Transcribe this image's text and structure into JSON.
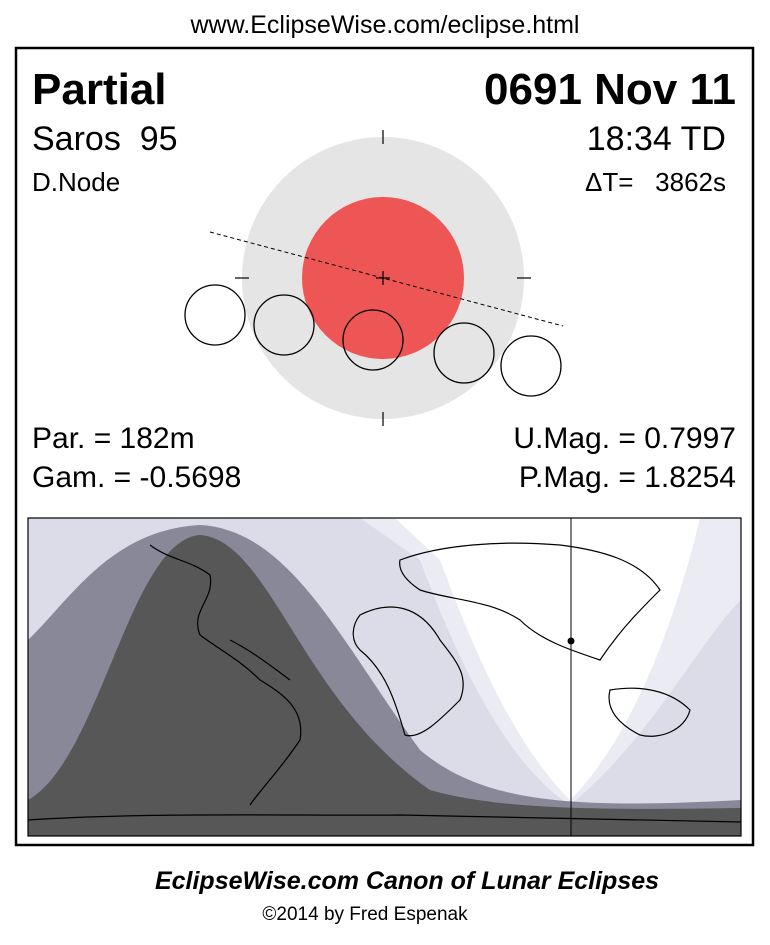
{
  "header": {
    "url": "www.EclipseWise.com/eclipse.html"
  },
  "eclipse": {
    "type": "Partial",
    "date": "0691 Nov 11",
    "saros": "Saros  95",
    "time": "18:34 TD",
    "node": "D.Node",
    "delta_t": "ΔT=   3862s",
    "duration": "Par. = 182m",
    "gamma": "Gam. = -0.5698",
    "umbral_mag": "U.Mag. = 0.7997",
    "penumbral_mag": "P.Mag. = 1.8254"
  },
  "footer": {
    "title": "EclipseWise.com Canon of Lunar Eclipses",
    "credit": "©2014 by Fred Espenak"
  }
}
